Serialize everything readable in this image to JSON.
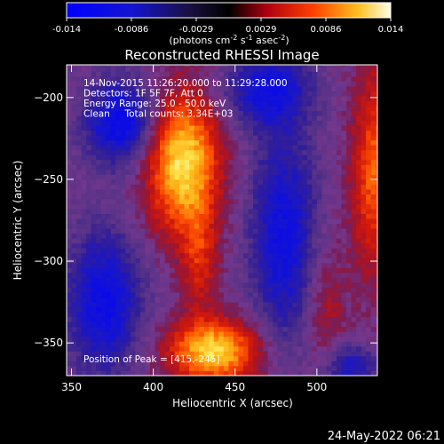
{
  "chart_data": {
    "type": "heatmap",
    "title": "Reconstructed RHESSI Image",
    "xlabel": "Heliocentric X (arcsec)",
    "ylabel": "Heliocentric Y (arcsec)",
    "xlim": [
      347,
      537
    ],
    "ylim": [
      -370,
      -180
    ],
    "xticks": [
      350,
      400,
      450,
      500
    ],
    "yticks": [
      -200,
      -250,
      -300,
      -350
    ],
    "colorbar": {
      "min": -0.014,
      "max": 0.014,
      "ticks": [
        "-0.014",
        "-0.0086",
        "-0.0029",
        "0.0029",
        "0.0086",
        "0.014"
      ],
      "unit_label": "(photons cm",
      "unit_sup1": "-2",
      "unit_mid": " s",
      "unit_sup2": "-1",
      "unit_end": " asec",
      "unit_sup3": "-2",
      "unit_close": ")"
    },
    "annotations": [
      "14-Nov-2015 11:26:20.000 to 11:29:28.000",
      "Detectors: 1F 5F 7F, Att 0",
      "Energy Range: 25.0 - 50.0 keV",
      "Clean     Total counts: 3.34E+03"
    ],
    "peak_label": "Position of Peak = [415,-245]",
    "sources": [
      {
        "x": 418,
        "y": -240,
        "sx": 16,
        "sy": 30,
        "amp": 0.0135
      },
      {
        "x": 437,
        "y": -355,
        "sx": 20,
        "sy": 14,
        "amp": 0.0128
      },
      {
        "x": 428,
        "y": -300,
        "sx": 8,
        "sy": 22,
        "amp": 0.0055
      },
      {
        "x": 535,
        "y": -245,
        "sx": 10,
        "sy": 45,
        "amp": 0.0085
      },
      {
        "x": 505,
        "y": -330,
        "sx": 9,
        "sy": 30,
        "amp": 0.004
      },
      {
        "x": 380,
        "y": -215,
        "sx": 15,
        "sy": 18,
        "amp": -0.0105
      },
      {
        "x": 370,
        "y": -325,
        "sx": 16,
        "sy": 30,
        "amp": -0.0095
      },
      {
        "x": 480,
        "y": -285,
        "sx": 14,
        "sy": 45,
        "amp": -0.009
      },
      {
        "x": 470,
        "y": -195,
        "sx": 18,
        "sy": 16,
        "amp": -0.0085
      },
      {
        "x": 520,
        "y": -365,
        "sx": 12,
        "sy": 10,
        "amp": -0.007
      }
    ]
  },
  "footer": {
    "timestamp": "24-May-2022 06:21"
  }
}
